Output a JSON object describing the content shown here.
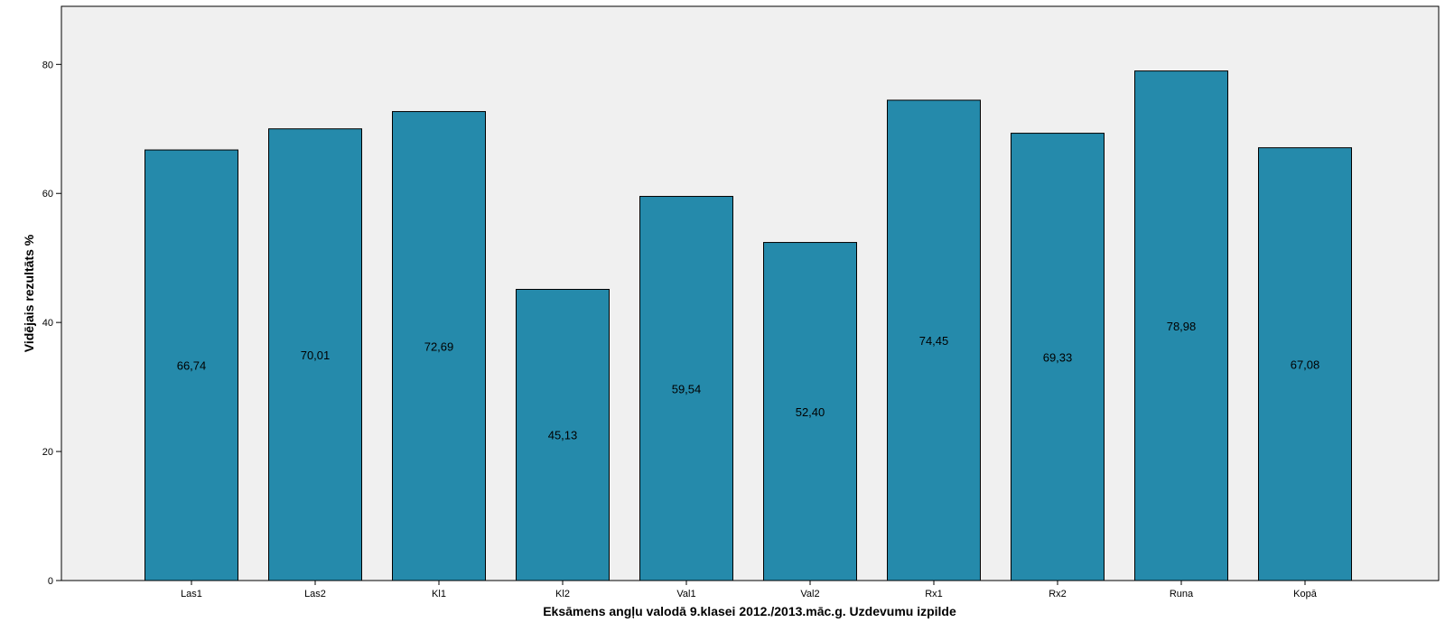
{
  "chart_data": {
    "type": "bar",
    "title": "",
    "xlabel": "Eksāmens angļu valodā 9.klasei 2012./2013.māc.g. Uzdevumu izpilde",
    "ylabel": "Vidējais rezultāts %",
    "categories": [
      "Las1",
      "Las2",
      "Kl1",
      "Kl2",
      "Val1",
      "Val2",
      "Rx1",
      "Rx2",
      "Runa",
      "Kopā"
    ],
    "values": [
      66.74,
      70.01,
      72.69,
      45.13,
      59.54,
      52.4,
      74.45,
      69.33,
      78.98,
      67.08
    ],
    "data_labels": [
      "66,74",
      "70,01",
      "72,69",
      "45,13",
      "59,54",
      "52,40",
      "74,45",
      "69,33",
      "78,98",
      "67,08"
    ],
    "yticks": [
      0,
      20,
      40,
      60,
      80
    ],
    "ylim": [
      0,
      89
    ],
    "grid": false,
    "legend": "none",
    "colors": {
      "bar_fill": "#258aab",
      "bar_stroke": "#000000",
      "plot_background": "#f0f0f0",
      "axis": "#000000"
    }
  }
}
